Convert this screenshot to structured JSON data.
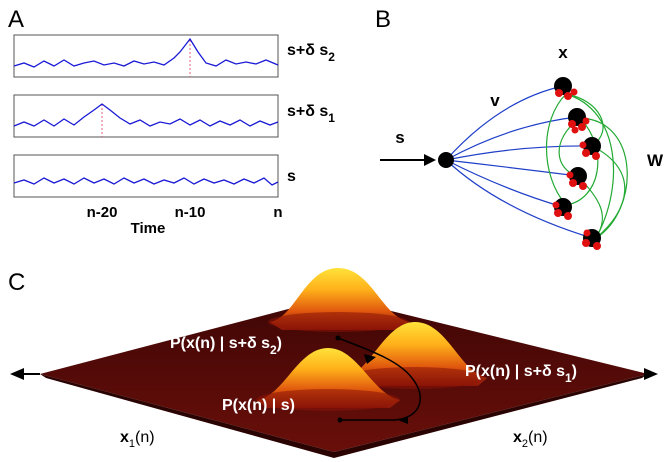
{
  "panels": {
    "a": {
      "letter": "A",
      "traces": [
        {
          "label": "s+δ s",
          "sub": "2",
          "marker_at": "n-10"
        },
        {
          "label": "s+δ s",
          "sub": "1",
          "marker_at": "n-20"
        },
        {
          "label": "s",
          "sub": "",
          "marker_at": ""
        }
      ],
      "ticks": [
        "n-20",
        "n-10",
        "n"
      ],
      "axis_label": "Time",
      "colors": {
        "trace": "#1a1ad6",
        "marker": "#e0607a",
        "frame": "#444444"
      }
    },
    "b": {
      "letter": "B",
      "input_label": "s",
      "v_label": "v",
      "x_label": "x",
      "w_label": "W",
      "colors": {
        "v_edges": "#1f3fc8",
        "w_edges": "#22aa33",
        "node": "#000000",
        "synapse": "#e01010"
      }
    },
    "c": {
      "letter": "C",
      "labels": {
        "dist_s2_main": "P(x(n) | s+δ s",
        "dist_s2_sub": "2",
        "dist_s1_main": "P(x(n) | s+δ s",
        "dist_s1_sub": "1",
        "dist_s": "P(x(n) | s)",
        "close_paren": ")",
        "x1_main": "x",
        "x1_sub": "1",
        "x1_arg": "(n)",
        "x2_main": "x",
        "x2_sub": "2",
        "x2_arg": "(n)"
      },
      "colors": {
        "plane": "#5a0a08",
        "peak": "#ffd21a",
        "mid": "#f08a10",
        "base": "#a41808"
      }
    }
  }
}
